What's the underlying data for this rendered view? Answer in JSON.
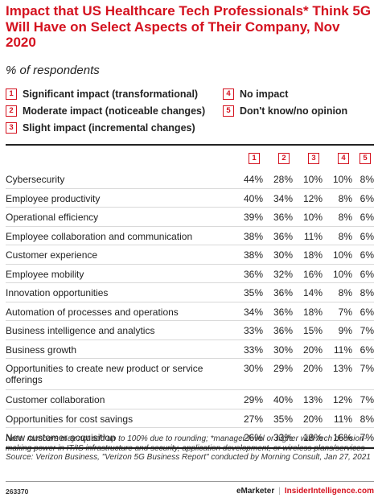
{
  "title": "Impact that US Healthcare Tech Professionals* Think 5G Will Have on Select Aspects of Their Company, Nov 2020",
  "subtitle": "% of respondents",
  "legend": [
    {
      "num": "1",
      "label": "Significant impact (transformational)"
    },
    {
      "num": "2",
      "label": "Moderate impact (noticeable changes)"
    },
    {
      "num": "3",
      "label": "Slight impact (incremental changes)"
    },
    {
      "num": "4",
      "label": "No impact"
    },
    {
      "num": "5",
      "label": "Don't know/no opinion"
    }
  ],
  "accent_color": "#d4121f",
  "chart_data": {
    "type": "table",
    "columns": [
      "1",
      "2",
      "3",
      "4",
      "5"
    ],
    "rows": [
      {
        "label": "Cybersecurity",
        "values": [
          "44%",
          "28%",
          "10%",
          "10%",
          "8%"
        ]
      },
      {
        "label": "Employee productivity",
        "values": [
          "40%",
          "34%",
          "12%",
          "8%",
          "6%"
        ]
      },
      {
        "label": "Operational efficiency",
        "values": [
          "39%",
          "36%",
          "10%",
          "8%",
          "6%"
        ]
      },
      {
        "label": "Employee collaboration and communication",
        "values": [
          "38%",
          "36%",
          "11%",
          "8%",
          "6%"
        ]
      },
      {
        "label": "Customer experience",
        "values": [
          "38%",
          "30%",
          "18%",
          "10%",
          "6%"
        ]
      },
      {
        "label": "Employee mobility",
        "values": [
          "36%",
          "32%",
          "16%",
          "10%",
          "6%"
        ]
      },
      {
        "label": "Innovation opportunities",
        "values": [
          "35%",
          "36%",
          "14%",
          "8%",
          "8%"
        ]
      },
      {
        "label": "Automation of processes and operations",
        "values": [
          "34%",
          "36%",
          "18%",
          "7%",
          "6%"
        ]
      },
      {
        "label": "Business intelligence and analytics",
        "values": [
          "33%",
          "36%",
          "15%",
          "9%",
          "7%"
        ]
      },
      {
        "label": "Business growth",
        "values": [
          "33%",
          "30%",
          "20%",
          "11%",
          "6%"
        ]
      },
      {
        "label": "Opportunities to create new product or service offerings",
        "values": [
          "30%",
          "29%",
          "20%",
          "13%",
          "7%"
        ]
      },
      {
        "label": "Customer collaboration",
        "values": [
          "29%",
          "40%",
          "13%",
          "12%",
          "7%"
        ]
      },
      {
        "label": "Opportunities for cost savings",
        "values": [
          "27%",
          "35%",
          "20%",
          "11%",
          "8%"
        ]
      },
      {
        "label": "New customer acquisition",
        "values": [
          "26%",
          "33%",
          "18%",
          "16%",
          "7%"
        ]
      }
    ]
  },
  "note": "Note: numbers may not add up to 100% due to rounding; *manager-level or higher with tech decision-making power in IT/IS infrastructure and security, application development, or wireless plans/services",
  "source": "Source: Verizon Business, \"Verizon 5G Business Report\" conducted by Morning Consult, Jan 27, 2021",
  "footer": {
    "chart_id": "263370",
    "brand1": "eMarketer",
    "separator": "|",
    "brand2": "InsiderIntelligence.com"
  }
}
